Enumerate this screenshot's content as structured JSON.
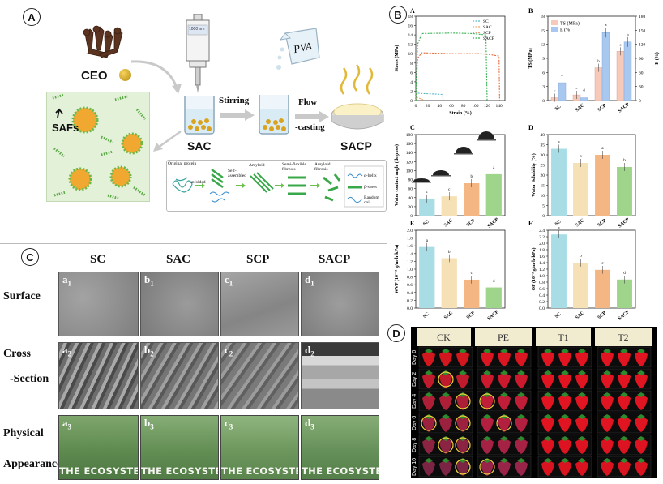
{
  "panels": {
    "a": "A",
    "b": "B",
    "c": "C",
    "d": "D"
  },
  "schematic": {
    "ceo": "CEO",
    "safs": "SAFs",
    "sac": "SAC",
    "stirring": "Stirring",
    "pva": "PVA",
    "flow": "Flow",
    "casting": "-casting",
    "sacp": "SACP",
    "syringe_label": "1000 nm",
    "inset_steps": [
      "Original protein",
      "unfolded",
      "Self-assembled",
      "Amyloid",
      "Semi-flexible fibrosis",
      "Amyloid fibrosis"
    ],
    "inset_legend": [
      "α-helix",
      "β-sheet",
      "Random coil"
    ]
  },
  "panel_b": {
    "A": {
      "letter": "A",
      "ylabel": "Stress (MPa)",
      "xlabel": "Strain (%)",
      "legend": [
        "SC",
        "SAC",
        "SCP",
        "SACP"
      ],
      "colors": {
        "SC": "#5bb8c9",
        "SAC": "#f0a770",
        "SCP": "#e86a3a",
        "SACP": "#36b050"
      },
      "ylim": [
        0,
        18
      ],
      "xlim": [
        0,
        150
      ],
      "yticks": [
        "0",
        "2",
        "4",
        "6",
        "8",
        "10",
        "12",
        "14",
        "16",
        "18"
      ],
      "xticks": [
        "0",
        "20",
        "40",
        "60",
        "80",
        "100",
        "120",
        "140"
      ]
    },
    "B": {
      "letter": "B",
      "ylabel_left": "TS (MPa)",
      "ylabel_right": "E (%)",
      "legend": [
        "TS (MPa)",
        "E (%)"
      ],
      "categories": [
        "SC",
        "SAC",
        "SCP",
        "SACP"
      ],
      "ts": [
        0.6,
        1.2,
        7.0,
        10.5
      ],
      "e": [
        38,
        6,
        145,
        125
      ],
      "ylim_left": [
        0,
        18
      ],
      "ylim_right": [
        0,
        180
      ],
      "yticks_left": [
        "0",
        "3",
        "6",
        "9",
        "12",
        "15",
        "18"
      ],
      "yticks_right": [
        "0",
        "30",
        "60",
        "90",
        "120",
        "150",
        "180"
      ],
      "sig_ts": [
        "c",
        "c",
        "b",
        "a"
      ],
      "sig_e": [
        "a",
        "d",
        "a",
        "b"
      ]
    },
    "C": {
      "letter": "C",
      "ylabel": "Water contact angle (degrees)",
      "categories": [
        "SC",
        "SAC",
        "SCP",
        "SACP"
      ],
      "values": [
        38,
        43,
        72,
        92
      ],
      "colors": [
        "#a8dde6",
        "#f6e0b6",
        "#f4b784",
        "#9ed58b"
      ],
      "ylim": [
        0,
        180
      ],
      "yticks": [
        "0",
        "20",
        "40",
        "60",
        "80",
        "100",
        "120",
        "140",
        "160",
        "180"
      ],
      "sig": [
        "c",
        "c",
        "b",
        "a"
      ]
    },
    "D": {
      "letter": "D",
      "ylabel": "Water Solubility (%)",
      "categories": [
        "SC",
        "SAC",
        "SCP",
        "SACP"
      ],
      "values": [
        33,
        26,
        30,
        24
      ],
      "colors": [
        "#a8dde6",
        "#f6e0b6",
        "#f4b784",
        "#9ed58b"
      ],
      "ylim": [
        0,
        40
      ],
      "yticks": [
        "0",
        "5",
        "10",
        "15",
        "20",
        "25",
        "30",
        "35",
        "40"
      ],
      "sig": [
        "a",
        "b",
        "a",
        "b"
      ]
    },
    "E": {
      "letter": "E",
      "ylabel": "WVP (10⁻¹¹ g/m·h·kPa)",
      "categories": [
        "SC",
        "SAC",
        "SCP",
        "SACP"
      ],
      "values": [
        1.57,
        1.28,
        0.73,
        0.53
      ],
      "colors": [
        "#a8dde6",
        "#f6e0b6",
        "#f4b784",
        "#9ed58b"
      ],
      "ylim": [
        0,
        2.0
      ],
      "yticks": [
        "0.0",
        "0.2",
        "0.4",
        "0.6",
        "0.8",
        "1.0",
        "1.2",
        "1.4",
        "1.6",
        "1.8",
        "2.0"
      ],
      "sig": [
        "a",
        "b",
        "c",
        "d"
      ]
    },
    "F": {
      "letter": "F",
      "ylabel": "OP (10⁻³ g/m·h·kPa)",
      "categories": [
        "SC",
        "SAC",
        "SCP",
        "SACP"
      ],
      "values": [
        2.27,
        1.4,
        1.18,
        0.88
      ],
      "colors": [
        "#a8dde6",
        "#f6e0b6",
        "#f4b784",
        "#9ed58b"
      ],
      "ylim": [
        0,
        2.4
      ],
      "yticks": [
        "0.0",
        "0.2",
        "0.4",
        "0.6",
        "0.8",
        "1.0",
        "1.2",
        "1.4",
        "1.6",
        "1.8",
        "2.0",
        "2.2",
        "2.4"
      ],
      "sig": [
        "a",
        "b",
        "c",
        "d"
      ]
    }
  },
  "panel_c": {
    "columns": [
      "SC",
      "SAC",
      "SCP",
      "SACP"
    ],
    "rows": [
      "Surface",
      "Cross",
      "-Section",
      "Physical",
      "Appearance"
    ],
    "surface_labels": [
      [
        "a",
        "1"
      ],
      [
        "b",
        "1"
      ],
      [
        "c",
        "1"
      ],
      [
        "d",
        "1"
      ]
    ],
    "cross_labels": [
      [
        "a",
        "2"
      ],
      [
        "b",
        "2"
      ],
      [
        "c",
        "2"
      ],
      [
        "d",
        "2"
      ]
    ],
    "phys_labels": [
      [
        "a",
        "3"
      ],
      [
        "b",
        "3"
      ],
      [
        "c",
        "3"
      ],
      [
        "d",
        "3"
      ]
    ],
    "eco_text": "THE ECOSYSTEM"
  },
  "panel_d": {
    "columns": [
      "CK",
      "PE",
      "T1",
      "T2"
    ],
    "days": [
      "Day 0",
      "Day 2",
      "Day 4",
      "Day 6",
      "Day 8",
      "Day 10"
    ]
  }
}
